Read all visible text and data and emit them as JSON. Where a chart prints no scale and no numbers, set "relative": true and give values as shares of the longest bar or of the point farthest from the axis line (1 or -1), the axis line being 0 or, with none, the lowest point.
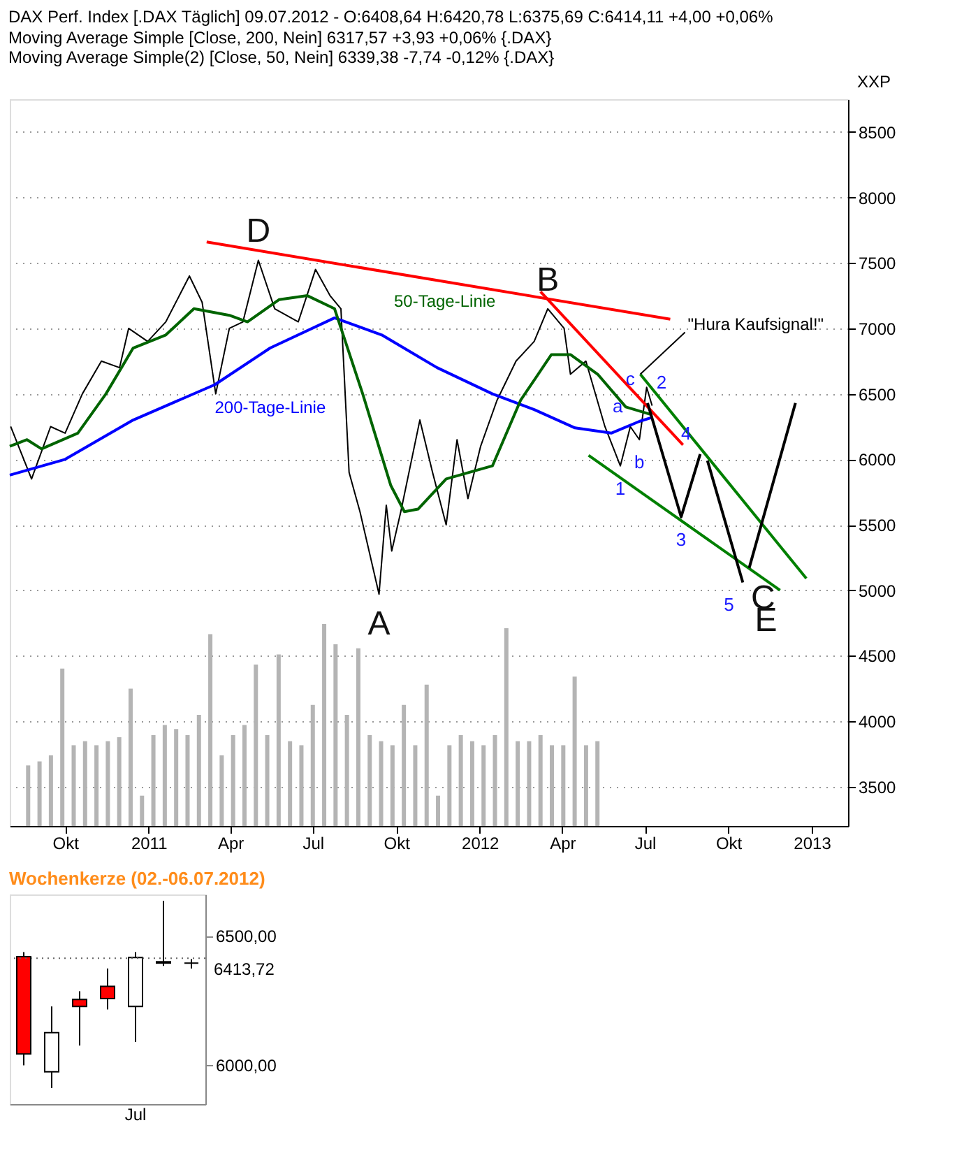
{
  "chart_data": [
    {
      "type": "line",
      "title": "DAX Perf. Index [.DAX  Täglich] 09.07.2012 - O:6408,64 H:6420,78 L:6375,69 C:6414,11 +4,00 +0,06%",
      "ylabel": "XXP",
      "xlim": [
        "2010-08-01",
        "2013-02-10"
      ],
      "ylim": [
        3200,
        8750
      ],
      "xticks": [
        {
          "value": "2010-10-01",
          "label": "Okt"
        },
        {
          "value": "2011-01-01",
          "label": "2011"
        },
        {
          "value": "2011-04-01",
          "label": "Apr"
        },
        {
          "value": "2011-07-01",
          "label": "Jul"
        },
        {
          "value": "2011-10-01",
          "label": "Okt"
        },
        {
          "value": "2012-01-01",
          "label": "2012"
        },
        {
          "value": "2012-04-01",
          "label": "Apr"
        },
        {
          "value": "2012-07-01",
          "label": "Jul"
        },
        {
          "value": "2012-10-01",
          "label": "Okt"
        },
        {
          "value": "2013-01-01",
          "label": "2013"
        }
      ],
      "yticks": [
        3500,
        4000,
        4500,
        5000,
        5500,
        6000,
        6500,
        7000,
        7500,
        8000,
        8500
      ],
      "grid": "y",
      "marker": "none",
      "line_style": "solid",
      "annotations": [
        "Moving Average Simple [Close, 200, Nein] 6317,57 +3,93 +0,06% {.DAX}",
        "Moving Average Simple(2) [Close, 50, Nein] 6339,38 -7,74 -0,12% {.DAX}",
        {
          "text": "D",
          "x": "2011-05-02",
          "y": 7520
        },
        {
          "text": "B",
          "x": "2012-03-16",
          "y": 7150
        },
        {
          "text": "A",
          "x": "2011-09-12",
          "y": 4970
        },
        {
          "text": "C",
          "x": "2012-10-24",
          "y": 5170
        },
        {
          "text": "E",
          "x": "2012-11-27",
          "y": 5000
        },
        {
          "text": "1",
          "x": "2012-06-04",
          "y": 5950
        },
        {
          "text": "2",
          "x": "2012-07-04",
          "y": 6430
        },
        {
          "text": "3",
          "x": "2012-08-10",
          "y": 5560
        },
        {
          "text": "4",
          "x": "2012-08-31",
          "y": 6040
        },
        {
          "text": "5",
          "x": "2012-10-17",
          "y": 5060
        },
        {
          "text": "a",
          "x": "2012-06-01",
          "y": 6400
        },
        {
          "text": "b",
          "x": "2012-06-25",
          "y": 6150
        },
        {
          "text": "c",
          "x": "2012-06-15",
          "y": 6610
        },
        {
          "text": "\"Hura Kaufsignal!\"",
          "x": "2012-06-26",
          "y": 6650
        }
      ],
      "series": [
        {
          "color": "#000000",
          "x": [
            "2010-08-02",
            "2010-08-25",
            "2010-09-15",
            "2010-10-01",
            "2010-10-20",
            "2010-11-10",
            "2010-11-30",
            "2010-12-10",
            "2010-12-31",
            "2011-01-20",
            "2011-02-15",
            "2011-03-01",
            "2011-03-16",
            "2011-03-31",
            "2011-04-15",
            "2011-05-02",
            "2011-05-20",
            "2011-06-15",
            "2011-07-04",
            "2011-07-20",
            "2011-08-01",
            "2011-08-10",
            "2011-08-22",
            "2011-09-12",
            "2011-09-20",
            "2011-09-26",
            "2011-10-06",
            "2011-10-27",
            "2011-11-10",
            "2011-11-25",
            "2011-12-07",
            "2011-12-19",
            "2012-01-02",
            "2012-01-20",
            "2012-02-10",
            "2012-03-01",
            "2012-03-16",
            "2012-04-03",
            "2012-04-10",
            "2012-04-27",
            "2012-05-18",
            "2012-06-04",
            "2012-06-15",
            "2012-06-25",
            "2012-07-03",
            "2012-07-09"
          ],
          "values": [
            6250,
            5850,
            6250,
            6200,
            6500,
            6750,
            6700,
            7000,
            6900,
            7050,
            7400,
            7200,
            6500,
            7000,
            7050,
            7520,
            7150,
            7050,
            7450,
            7250,
            7150,
            5900,
            5600,
            4970,
            5650,
            5300,
            5600,
            6300,
            5900,
            5500,
            6150,
            5700,
            6100,
            6450,
            6750,
            6900,
            7150,
            7000,
            6650,
            6750,
            6250,
            5950,
            6250,
            6150,
            6550,
            6410
          ]
        },
        {
          "name": "200-Tage-Linie",
          "color": "#0000ff",
          "x": [
            "2010-08-01",
            "2010-10-01",
            "2010-12-15",
            "2011-03-15",
            "2011-05-15",
            "2011-07-25",
            "2011-09-15",
            "2011-11-15",
            "2012-01-15",
            "2012-03-01",
            "2012-04-15",
            "2012-05-25",
            "2012-06-25",
            "2012-07-09"
          ],
          "values": [
            5880,
            6000,
            6300,
            6570,
            6850,
            7080,
            6950,
            6700,
            6500,
            6380,
            6240,
            6200,
            6290,
            6320
          ]
        },
        {
          "name": "50-Tage-Linie",
          "color": "#006400",
          "x": [
            "2010-08-01",
            "2010-08-20",
            "2010-09-05",
            "2010-10-15",
            "2010-11-15",
            "2010-12-15",
            "2011-01-20",
            "2011-02-20",
            "2011-03-31",
            "2011-04-20",
            "2011-05-25",
            "2011-06-25",
            "2011-07-25",
            "2011-08-25",
            "2011-09-25",
            "2011-10-10",
            "2011-10-25",
            "2011-11-25",
            "2011-12-20",
            "2012-01-15",
            "2012-02-15",
            "2012-03-20",
            "2012-04-10",
            "2012-05-10",
            "2012-06-10",
            "2012-07-09"
          ],
          "values": [
            6100,
            6150,
            6080,
            6200,
            6500,
            6850,
            6950,
            7150,
            7100,
            7050,
            7220,
            7250,
            7150,
            6500,
            5800,
            5600,
            5620,
            5850,
            5900,
            5950,
            6450,
            6800,
            6800,
            6650,
            6400,
            6340
          ]
        },
        {
          "color": "#ff0000",
          "x": [
            "2011-03-06",
            "2012-07-29"
          ],
          "values": [
            7660,
            7070
          ]
        },
        {
          "color": "#ff0000",
          "x": [
            "2012-03-08",
            "2012-08-12"
          ],
          "values": [
            7280,
            6110
          ]
        },
        {
          "color": "#008000",
          "x": [
            "2012-06-26",
            "2012-12-26"
          ],
          "values": [
            6650,
            5090
          ]
        },
        {
          "color": "#008000",
          "x": [
            "2012-04-30",
            "2012-11-27"
          ],
          "values": [
            6030,
            5000
          ]
        },
        {
          "color": "#000000",
          "x": [
            "2012-07-04",
            "2012-08-10",
            "2012-08-31"
          ],
          "values": [
            6430,
            5560,
            6040
          ]
        },
        {
          "color": "#000000",
          "x": [
            "2012-09-08",
            "2012-10-17"
          ],
          "values": [
            5990,
            5060
          ]
        },
        {
          "color": "#000000",
          "x": [
            "2012-10-24",
            "2012-12-14"
          ],
          "values": [
            5170,
            6430
          ]
        }
      ]
    },
    {
      "type": "bar",
      "relative": true,
      "color": "#b4b4b4",
      "categories": [
        null,
        null,
        null,
        null,
        null,
        null,
        null,
        null,
        null,
        null,
        null,
        null,
        null,
        null,
        null,
        null,
        null,
        null,
        null,
        null,
        null,
        null,
        null,
        null,
        null,
        null,
        null,
        null,
        null,
        null,
        null,
        null,
        null,
        null,
        null,
        null,
        null,
        null,
        null,
        null,
        null,
        null,
        null,
        null,
        null,
        null,
        null,
        null,
        null,
        null,
        null
      ],
      "values": [
        0.3,
        0.32,
        0.35,
        0.78,
        0.4,
        0.42,
        0.4,
        0.42,
        0.44,
        0.68,
        0.15,
        0.45,
        0.5,
        0.48,
        0.45,
        0.55,
        0.95,
        0.35,
        0.45,
        0.5,
        0.8,
        0.45,
        0.85,
        0.42,
        0.4,
        0.6,
        1.0,
        0.9,
        0.55,
        0.88,
        0.45,
        0.42,
        0.4,
        0.6,
        0.4,
        0.7,
        0.15,
        0.4,
        0.45,
        0.42,
        0.4,
        0.45,
        0.98,
        0.42,
        0.42,
        0.45,
        0.4,
        0.4,
        0.74,
        0.4,
        0.42
      ]
    },
    {
      "type": "candlestick",
      "title": "Wochenkerze (02.-06.07.2012)",
      "categories": [
        null,
        null,
        null,
        null,
        "Jul",
        null,
        null
      ],
      "ohlc": [
        [
          6420,
          6437,
          6000,
          6044
        ],
        [
          5975,
          6227,
          5912,
          6126
        ],
        [
          6254,
          6286,
          6076,
          6227
        ],
        [
          6305,
          6374,
          6216,
          6258
        ],
        [
          6227,
          6437,
          6090,
          6416
        ],
        [
          6395,
          6636,
          6384,
          6400
        ],
        [
          6395,
          6410,
          6374,
          6395
        ]
      ],
      "colors": [
        "#ff0000",
        "#ffffff",
        "#ff0000",
        "#ff0000",
        "#ffffff",
        "#000000",
        "#000000"
      ],
      "ylim": [
        5850,
        6660
      ],
      "yticks": [
        {
          "value": 6500,
          "label": "6500,00"
        },
        {
          "value": 6000,
          "label": "6000,00"
        }
      ],
      "ref_lines": [
        {
          "axis": "y",
          "value": 6413.72,
          "label": "6413,72"
        }
      ]
    }
  ]
}
